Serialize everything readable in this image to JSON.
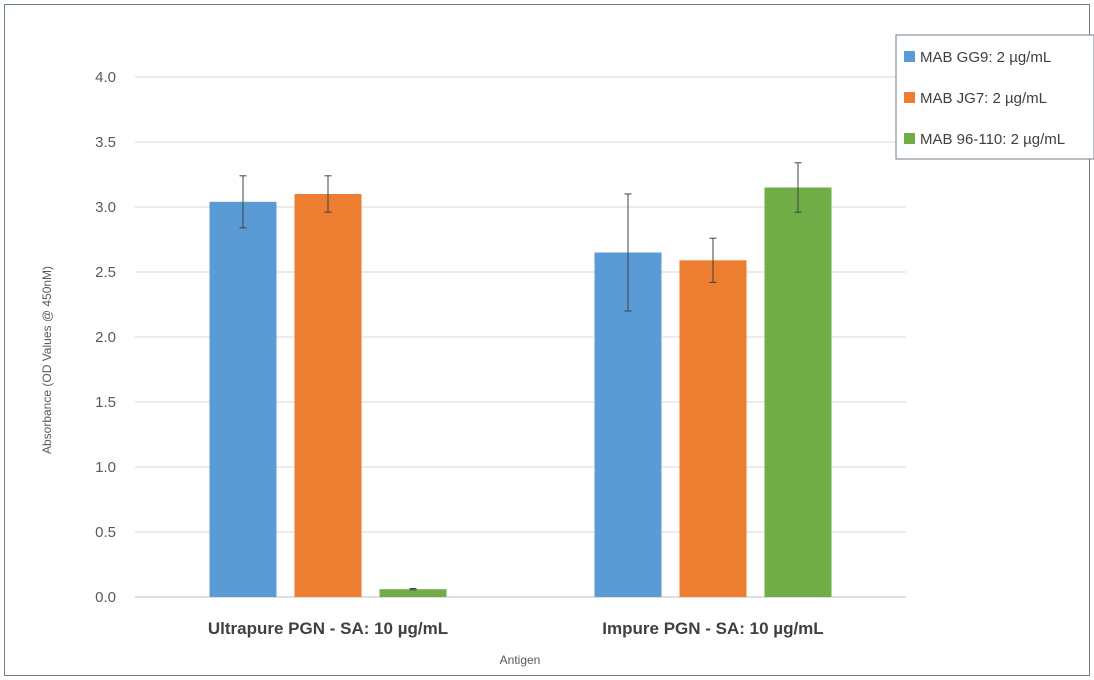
{
  "chart_data": {
    "type": "bar",
    "title": "",
    "xlabel": "Antigen",
    "ylabel": "Absorbance (OD Values @ 450nM)",
    "ylim": [
      0,
      4.0
    ],
    "yticks": [
      "0.0",
      "0.5",
      "1.0",
      "1.5",
      "2.0",
      "2.5",
      "3.0",
      "3.5",
      "4.0"
    ],
    "categories": [
      "Ultrapure PGN - SA: 10 µg/mL",
      "Impure PGN - SA: 10 µg/mL"
    ],
    "series": [
      {
        "name": "MAB GG9: 2 µg/mL",
        "color": "#5b9bd5",
        "values": [
          3.04,
          2.65
        ],
        "error": [
          0.2,
          0.45
        ]
      },
      {
        "name": "MAB JG7: 2 µg/mL",
        "color": "#ed7d31",
        "values": [
          3.1,
          2.59
        ],
        "error": [
          0.14,
          0.17
        ]
      },
      {
        "name": "MAB 96-110: 2 µg/mL",
        "color": "#70ad47",
        "values": [
          0.06,
          3.15
        ],
        "error": [
          0.005,
          0.19
        ]
      }
    ],
    "grid": true,
    "legend_position": "top-right"
  }
}
